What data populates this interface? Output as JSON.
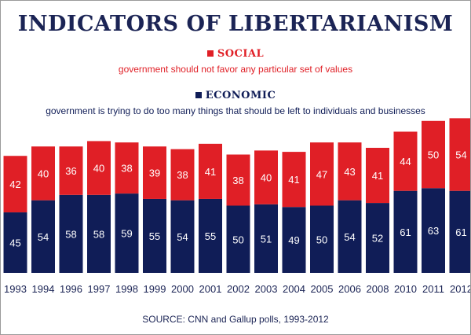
{
  "title": "INDICATORS OF LIBERTARIANISM",
  "legend": {
    "social": {
      "label": "SOCIAL",
      "description": "government should not favor any particular set of values",
      "color": "#e01f26"
    },
    "economic": {
      "label": "ECONOMIC",
      "description": "government is trying to do too many things that should be left to individuals and businesses",
      "color": "#101d57"
    }
  },
  "source": "SOURCE: CNN and Gallup polls, 1993-2012",
  "chart_data": {
    "type": "bar",
    "stacked": true,
    "categories": [
      "1993",
      "1994",
      "1996",
      "1997",
      "1998",
      "1999",
      "2000",
      "2001",
      "2002",
      "2003",
      "2004",
      "2005",
      "2006",
      "2008",
      "2010",
      "2011",
      "2012"
    ],
    "series": [
      {
        "name": "ECONOMIC",
        "values": [
          45,
          54,
          58,
          58,
          59,
          55,
          54,
          55,
          50,
          51,
          49,
          50,
          54,
          52,
          61,
          63,
          61
        ]
      },
      {
        "name": "SOCIAL",
        "values": [
          42,
          40,
          36,
          40,
          38,
          39,
          38,
          41,
          38,
          40,
          41,
          47,
          43,
          41,
          44,
          50,
          54
        ]
      }
    ],
    "grid": false
  }
}
